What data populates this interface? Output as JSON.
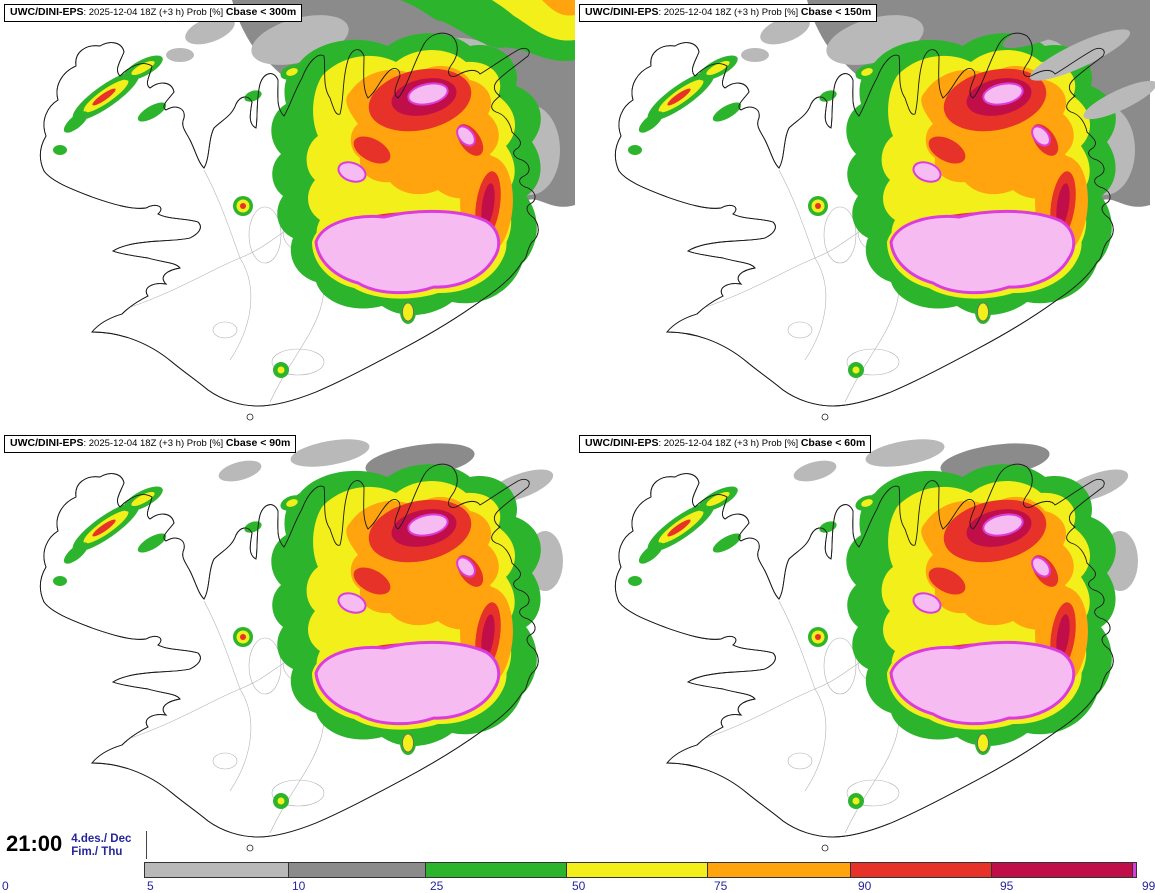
{
  "palette": {
    "white": "#ffffff",
    "gray_light": "#b9b9b9",
    "gray_dark": "#8b8b8b",
    "green": "#2db42d",
    "yellow": "#f3ef1a",
    "orange": "#ffa40e",
    "red": "#e63229",
    "crimson": "#c00f48",
    "magenta": "#dd3cdd",
    "pink": "#f6bcf2",
    "label_blue": "#26269b"
  },
  "panels": [
    {
      "model": "UWC/DINI-EPS",
      "meta": ": 2025-12-04 18Z (+3 h) Prob [%] ",
      "param": "Cbase < 300m"
    },
    {
      "model": "UWC/DINI-EPS",
      "meta": ": 2025-12-04 18Z (+3 h) Prob [%] ",
      "param": "Cbase < 150m"
    },
    {
      "model": "UWC/DINI-EPS",
      "meta": ": 2025-12-04 18Z (+3 h) Prob [%] ",
      "param": "Cbase < 90m"
    },
    {
      "model": "UWC/DINI-EPS",
      "meta": ": 2025-12-04 18Z (+3 h) Prob [%] ",
      "param": "Cbase < 60m"
    }
  ],
  "time": {
    "clock": "21:00",
    "date": "4.des./ Dec",
    "weekday": "Fim./ Thu"
  },
  "legend": {
    "ticks": [
      "0",
      "5",
      "10",
      "25",
      "50",
      "75",
      "90",
      "95",
      "99"
    ],
    "segments": [
      {
        "tick": "0",
        "color": "#ffffff",
        "width": 145
      },
      {
        "tick": "5",
        "color": "#b9b9b9",
        "width": 145
      },
      {
        "tick": "10",
        "color": "#8b8b8b",
        "width": 138
      },
      {
        "tick": "25",
        "color": "#2db42d",
        "width": 142
      },
      {
        "tick": "50",
        "color": "#f3ef1a",
        "width": 142
      },
      {
        "tick": "75",
        "color": "#ffa40e",
        "width": 144
      },
      {
        "tick": "90",
        "color": "#e63229",
        "width": 142
      },
      {
        "tick": "95",
        "color": "#c00f48",
        "width": 142
      },
      {
        "tick": "99",
        "color": "#dd3cdd",
        "width": 5
      }
    ]
  }
}
